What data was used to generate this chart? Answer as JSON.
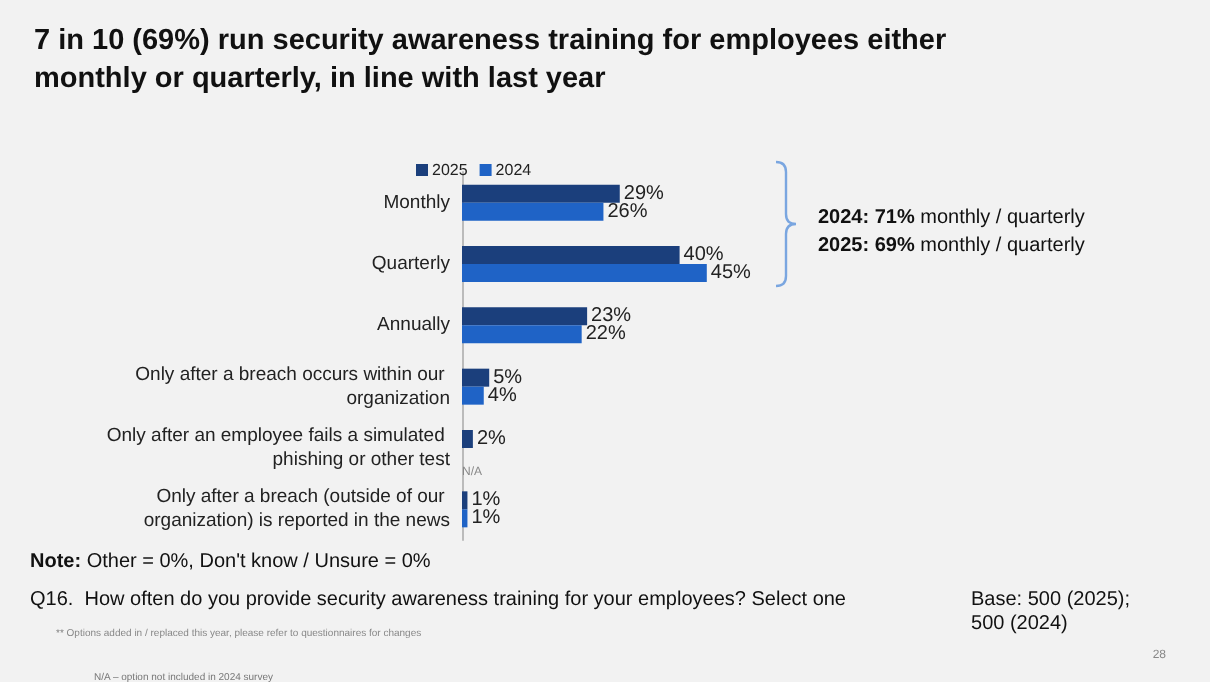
{
  "chart_data": {
    "type": "bar",
    "orientation": "horizontal",
    "title": "7 in 10 (69%) run security awareness training for employees either monthly or quarterly, in line with last year",
    "categories": [
      "Monthly",
      "Quarterly",
      "Annually",
      "Only after a breach occurs within our organization",
      "Only after an employee fails a simulated phishing or other test",
      "Only after a breach (outside of our organization) is reported in the news"
    ],
    "series": [
      {
        "name": "2025",
        "color": "#1b3f7c",
        "values": [
          29,
          40,
          23,
          5,
          2,
          1
        ],
        "value_labels": [
          "29%",
          "40%",
          "23%",
          "5%",
          "2%",
          "1%"
        ]
      },
      {
        "name": "2024",
        "color": "#1f63c6",
        "values": [
          26,
          45,
          22,
          4,
          null,
          1
        ],
        "value_labels": [
          "26%",
          "45%",
          "22%",
          "4%",
          "N/A",
          "1%"
        ]
      }
    ],
    "tick_labels": false,
    "grid": false,
    "legend": "top",
    "annotations": [
      "2024: 71% monthly / quarterly",
      "2025: 69% monthly / quarterly",
      "Note: Other = 0%, Don't know / Unsure = 0%",
      "Q16.  How often do you provide security awareness training for your employees? Select one",
      "Base: 500 (2025);\n500 (2024)",
      "** Options added in / replaced this year, please refer to questionnaires for changes",
      "N/A – option not included in 2024 survey",
      "28"
    ]
  }
}
